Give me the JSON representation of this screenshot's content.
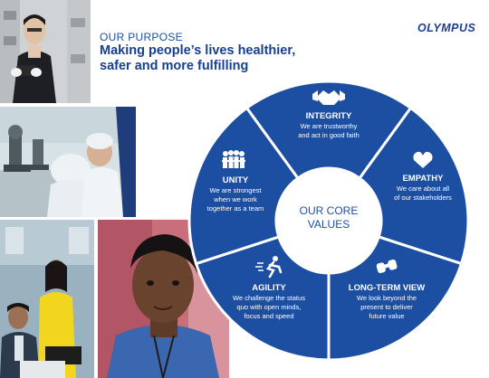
{
  "brand": {
    "logo_text": "OLYMPUS"
  },
  "purpose": {
    "label": "OUR PURPOSE",
    "headline_line1": "Making people’s lives healthier,",
    "headline_line2": "safer and more fulfilling"
  },
  "core": {
    "line1": "OUR CORE",
    "line2": "VALUES"
  },
  "values": [
    {
      "title": "INTEGRITY",
      "desc1": "We are trustworthy",
      "desc2": "and act in good faith",
      "desc3": "",
      "icon": "handshake-icon"
    },
    {
      "title": "EMPATHY",
      "desc1": "We care about all",
      "desc2": "of our stakeholders",
      "desc3": "",
      "icon": "heart-icon"
    },
    {
      "title": "LONG-TERM VIEW",
      "desc1": "We look beyond the",
      "desc2": "present to deliver",
      "desc3": "future value",
      "icon": "binoculars-icon"
    },
    {
      "title": "AGILITY",
      "desc1": "We challenge the status",
      "desc2": "quo with open minds,",
      "desc3": "focus and speed",
      "icon": "runner-icon"
    },
    {
      "title": "UNITY",
      "desc1": "We are strongest",
      "desc2": "when we work",
      "desc3": "together as a team",
      "icon": "team-icon"
    }
  ],
  "colors": {
    "wheel_blue": "#1c4fa2",
    "headline_blue": "#16408f",
    "white": "#ffffff"
  }
}
